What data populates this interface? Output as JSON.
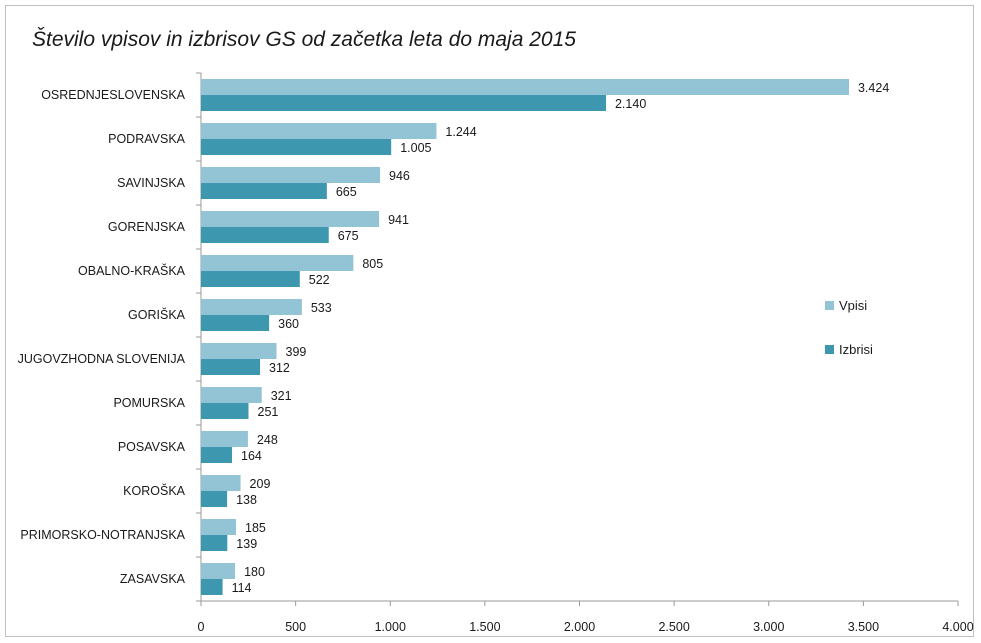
{
  "chart_data": {
    "type": "bar",
    "orientation": "horizontal",
    "title": "Število vpisov in izbrisov GS od začetka leta do maja 2015",
    "xlabel": "",
    "ylabel": "",
    "xlim": [
      0,
      4000
    ],
    "x_ticks": [
      0,
      500,
      1000,
      1500,
      2000,
      2500,
      3000,
      3500,
      4000
    ],
    "x_tick_labels": [
      "0",
      "500",
      "1.000",
      "1.500",
      "2.000",
      "2.500",
      "3.000",
      "3.500",
      "4.000"
    ],
    "grid": false,
    "legend_position": "right",
    "categories": [
      "OSREDNJESLOVENSKA",
      "PODRAVSKA",
      "SAVINJSKA",
      "GORENJSKA",
      "OBALNO-KRAŠKA",
      "GORIŠKA",
      "JUGOVZHODNA  SLOVENIJA",
      "POMURSKA",
      "POSAVSKA",
      "KOROŠKA",
      "PRIMORSKO-NOTRANJSKA",
      "ZASAVSKA"
    ],
    "series": [
      {
        "name": "Vpisi",
        "color": "#92c4d5",
        "values": [
          3424,
          1244,
          946,
          941,
          805,
          533,
          399,
          321,
          248,
          209,
          185,
          180
        ],
        "labels": [
          "3.424",
          "1.244",
          "946",
          "941",
          "805",
          "533",
          "399",
          "321",
          "248",
          "209",
          "185",
          "180"
        ]
      },
      {
        "name": "Izbrisi",
        "color": "#3d97ae",
        "values": [
          2140,
          1005,
          665,
          675,
          522,
          360,
          312,
          251,
          164,
          138,
          139,
          114
        ],
        "labels": [
          "2.140",
          "1.005",
          "665",
          "675",
          "522",
          "360",
          "312",
          "251",
          "164",
          "138",
          "139",
          "114"
        ]
      }
    ]
  }
}
